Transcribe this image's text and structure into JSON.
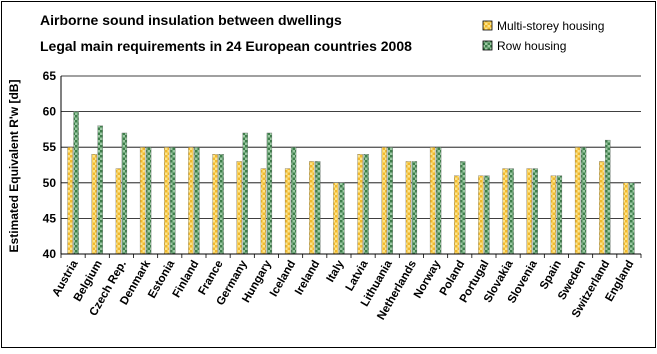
{
  "chart_data": {
    "type": "bar",
    "title": "Airborne sound insulation between dwellings",
    "subtitle": "Legal main requirements in 24 European countries 2008",
    "xlabel": "",
    "ylabel": "Estimated Equivalent R'w [dB]",
    "ylim": [
      40,
      65
    ],
    "yticks": [
      40,
      45,
      50,
      55,
      60,
      65
    ],
    "grid": true,
    "legend_position": "top-right",
    "categories": [
      "Austria",
      "Belgium",
      "Czech Rep.",
      "Denmark",
      "Estonia",
      "Finland",
      "France",
      "Germany",
      "Hungary",
      "Iceland",
      "Ireland",
      "Italy",
      "Latvia",
      "Lithuania",
      "Netherlands",
      "Norway",
      "Poland",
      "Portugal",
      "Slovakia",
      "Slovenia",
      "Spain",
      "Sweden",
      "Switzerland",
      "England"
    ],
    "series": [
      {
        "name": "Multi-storey housing",
        "color": "#f5c542",
        "values": [
          55,
          54,
          52,
          55,
          55,
          55,
          54,
          53,
          52,
          52,
          53,
          50,
          54,
          55,
          53,
          55,
          51,
          51,
          52,
          52,
          51,
          55,
          53,
          50
        ]
      },
      {
        "name": "Row housing",
        "color": "#4a8a55",
        "values": [
          60,
          58,
          57,
          55,
          55,
          55,
          54,
          57,
          57,
          55,
          53,
          50,
          54,
          55,
          53,
          55,
          53,
          51,
          52,
          52,
          51,
          55,
          56,
          50
        ]
      }
    ]
  }
}
